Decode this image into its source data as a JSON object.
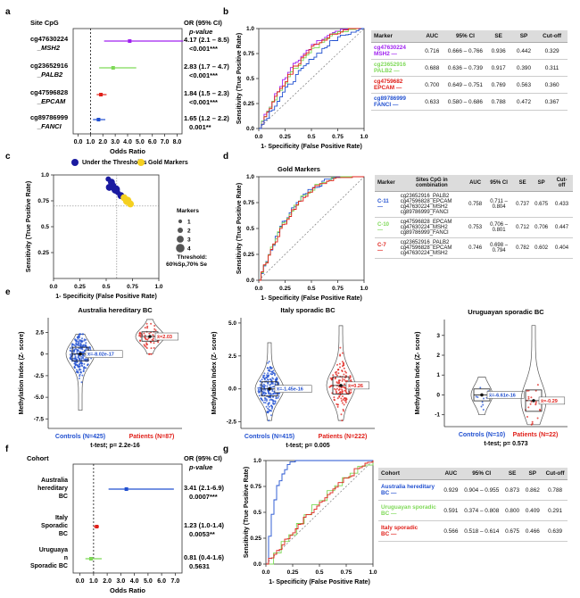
{
  "panel_letters": [
    "a",
    "b",
    "c",
    "d",
    "e",
    "f",
    "g"
  ],
  "colors": {
    "purple": "#a020f0",
    "green": "#7ed957",
    "red": "#e0201a",
    "blue": "#2150d0",
    "navy": "#1a1aa0",
    "gold": "#f5d020",
    "grey": "#888888"
  },
  "panel_a": {
    "col1": "Site CpG",
    "col2": "OR (95% CI)",
    "col3": "p-value",
    "xlabel": "Odds Ratio",
    "rows": [
      {
        "site": "cg47630224",
        "gene": "_MSH2",
        "or": "4.17 (2.1 – 8.5)",
        "p": "<0.001***",
        "est": 4.17,
        "lo": 2.1,
        "hi": 8.5,
        "color": "#a020f0"
      },
      {
        "site": "cg23652916",
        "gene": "_PALB2",
        "or": "2.83 (1.7 – 4.7)",
        "p": "<0.001***",
        "est": 2.83,
        "lo": 1.7,
        "hi": 4.7,
        "color": "#7ed957"
      },
      {
        "site": "cg47596828",
        "gene": "_EPCAM",
        "or": "1.84 (1.5 – 2.3)",
        "p": "<0.001***",
        "est": 1.84,
        "lo": 1.5,
        "hi": 2.3,
        "color": "#e0201a"
      },
      {
        "site": "cg89786999",
        "gene": "_FANCI",
        "or": "1.65 (1.2 – 2.2)",
        "p": "0.001**",
        "est": 1.65,
        "lo": 1.2,
        "hi": 2.2,
        "color": "#2150d0"
      }
    ],
    "ticks": [
      "0.0",
      "1.0",
      "2.0",
      "3.0",
      "4.0",
      "5.0",
      "6.0",
      "7.0",
      "8.0"
    ]
  },
  "panel_b": {
    "ylabel": "Sensitivity (True Positive Rate)",
    "xlabel": "1- Specificity (False Positive Rate)",
    "ticks": [
      "0.0",
      "0.25",
      "0.5",
      "0.75",
      "1.0"
    ],
    "headers": [
      "Marker",
      "AUC",
      "95% CI",
      "SE",
      "SP",
      "Cut-off"
    ],
    "rows": [
      {
        "m1": "cg47630224",
        "m2": "MSH2",
        "auc": "0.716",
        "ci": "0.666 – 0.766",
        "se": "0.936",
        "sp": "0.442",
        "cut": "0.329",
        "color": "#a020f0"
      },
      {
        "m1": "cg23652916",
        "m2": "PALB2",
        "auc": "0.688",
        "ci": "0.636 – 0.739",
        "se": "0.917",
        "sp": "0.390",
        "cut": "0.311",
        "color": "#7ed957"
      },
      {
        "m1": "cg4759682",
        "m2": "EPCAM",
        "auc": "0.700",
        "ci": "0.649 – 0.751",
        "se": "0.769",
        "sp": "0.563",
        "cut": "0.360",
        "color": "#e0201a"
      },
      {
        "m1": "cg89786999",
        "m2": "FANCI",
        "auc": "0.633",
        "ci": "0.580 – 0.686",
        "se": "0.788",
        "sp": "0.472",
        "cut": "0.367",
        "color": "#2150d0"
      }
    ]
  },
  "panel_c": {
    "legend1": "Under the Thresholds",
    "legend2": "Gold Markers",
    "markers_title": "Markers",
    "sizes": [
      "1",
      "2",
      "3",
      "4"
    ],
    "threshold1": "Threshold:",
    "threshold2": "60%Sp,70% Se",
    "ylabel": "Sensitivity (True Positive Rate)",
    "xlabel": "1- Specificity (False Positive Rate)",
    "ticks": [
      "0.0",
      "0.25",
      "0.5",
      "0.75",
      "1.0"
    ],
    "points": [
      {
        "x": 0.52,
        "y": 0.96,
        "s": 2,
        "gold": false
      },
      {
        "x": 0.55,
        "y": 0.93,
        "s": 3,
        "gold": false
      },
      {
        "x": 0.57,
        "y": 0.9,
        "s": 2,
        "gold": false
      },
      {
        "x": 0.53,
        "y": 0.88,
        "s": 3,
        "gold": false
      },
      {
        "x": 0.59,
        "y": 0.86,
        "s": 4,
        "gold": false
      },
      {
        "x": 0.61,
        "y": 0.83,
        "s": 2,
        "gold": false
      },
      {
        "x": 0.64,
        "y": 0.8,
        "s": 3,
        "gold": false
      },
      {
        "x": 0.67,
        "y": 0.78,
        "s": 3,
        "gold": true
      },
      {
        "x": 0.7,
        "y": 0.75,
        "s": 4,
        "gold": true
      },
      {
        "x": 0.73,
        "y": 0.72,
        "s": 3,
        "gold": true
      }
    ]
  },
  "panel_d": {
    "title": "Gold Markers",
    "ylabel": "Sensitivity (True Positive Rate)",
    "xlabel": "1- Specificity (False Positive Rate)",
    "ticks": [
      "0.0",
      "0.25",
      "0.5",
      "0.75",
      "1.0"
    ],
    "headers": [
      "Marker",
      "Sites CpG in combination",
      "AUC",
      "95% CI",
      "SE",
      "SP",
      "Cut-off"
    ],
    "rows": [
      {
        "marker": "C-11",
        "sites": [
          "cg23652916_PALB2",
          "cg47596828_EPCAM",
          "cg47630224_MSH2",
          "cg89786999_FANCI"
        ],
        "auc": "0.758",
        "ci": "0.711 – 0.804",
        "se": "0.737",
        "sp": "0.675",
        "cut": "0.433",
        "color": "#2150d0"
      },
      {
        "marker": "C-10",
        "sites": [
          "cg47596828_EPCAM",
          "cg47630224_MSH2",
          "cg89786999_FANCI"
        ],
        "auc": "0.753",
        "ci": "0.706 – 0.801",
        "se": "0.712",
        "sp": "0.706",
        "cut": "0.447",
        "color": "#7ed957"
      },
      {
        "marker": "C-7",
        "sites": [
          "cg23652916_PALB2",
          "cg47596828_EPCAM",
          "cg47630224_MSH2"
        ],
        "auc": "0.746",
        "ci": "0.698 – 0.794",
        "se": "0.782",
        "sp": "0.602",
        "cut": "0.404",
        "color": "#e0201a"
      }
    ]
  },
  "panel_e": {
    "ylabel": "Methylation Index (Z- score)",
    "plots": [
      {
        "title": "Australia hereditary BC",
        "controls": "Controls (N=425)",
        "patients": "Patients (N=87)",
        "test": "t-test; p= 2.2e-16",
        "mean_c": "x̄=-8.02e-17",
        "mean_p": "x̄=2.03",
        "ticks": [
          "-7.5",
          "-5.0",
          "-2.5",
          "0",
          "2.5"
        ]
      },
      {
        "title": "Italy sporadic BC",
        "controls": "Controls (N=415)",
        "patients": "Patients (N=222)",
        "test": "t-test; p= 0.005",
        "mean_c": "x̄=-1.45e-16",
        "mean_p": "x̄=0.26",
        "ticks": [
          "-2.5",
          "0.0",
          "2.5",
          "5.0"
        ]
      },
      {
        "title": "Uruguayan sporadic BC",
        "controls": "Controls (N=10)",
        "patients": "Patients (N=22)",
        "test": "t-test; p= 0.573",
        "mean_c": "x̄=-6.61e-16",
        "mean_p": "x̄=-0.29",
        "ticks": [
          "-1",
          "0",
          "1",
          "2",
          "3"
        ]
      }
    ]
  },
  "panel_f": {
    "col1": "Cohort",
    "col2": "OR (95% CI)",
    "col3": "p-value",
    "xlabel": "Odds Ratio",
    "ticks": [
      "0.0",
      "1.0",
      "2.0",
      "3.0",
      "4.0",
      "5.0",
      "6.0",
      "7.0"
    ],
    "rows": [
      {
        "l1": "Australia",
        "l2": "hereditary",
        "l3": "BC",
        "or": "3.41 (2.1-6.9)",
        "p": "0.0007***",
        "est": 3.41,
        "lo": 2.1,
        "hi": 6.9,
        "color": "#2150d0"
      },
      {
        "l1": "Italy",
        "l2": "Sporadic",
        "l3": "BC",
        "or": "1.23 (1.0-1.4)",
        "p": "0.0053**",
        "est": 1.23,
        "lo": 1.0,
        "hi": 1.4,
        "color": "#e0201a"
      },
      {
        "l1": "Uruguaya",
        "l2": "n",
        "l3": "Sporadic BC",
        "or": "0.81 (0.4-1.6)",
        "p": "0.5631",
        "est": 0.81,
        "lo": 0.4,
        "hi": 1.6,
        "color": "#7ed957"
      }
    ]
  },
  "panel_g": {
    "ylabel": "Sensitivity (True Positive Rate)",
    "xlabel": "1- Specificity (False Positive Rate)",
    "ticks": [
      "0.0",
      "0.25",
      "0.5",
      "0.75",
      "1.0"
    ],
    "headers": [
      "Cohort",
      "AUC",
      "95% CI",
      "SE",
      "SP",
      "Cut-off"
    ],
    "rows": [
      {
        "c1": "Australia hereditary",
        "c2": "BC",
        "auc": "0.929",
        "ci": "0.904 – 0.955",
        "se": "0.873",
        "sp": "0.862",
        "cut": "0.788",
        "color": "#2150d0"
      },
      {
        "c1": "Uruguayan sporadic",
        "c2": "BC",
        "auc": "0.591",
        "ci": "0.374 – 0.808",
        "se": "0.800",
        "sp": "0.409",
        "cut": "0.291",
        "color": "#7ed957"
      },
      {
        "c1": "Italy sporadic",
        "c2": "BC",
        "auc": "0.566",
        "ci": "0.518 – 0.614",
        "se": "0.675",
        "sp": "0.466",
        "cut": "0.639",
        "color": "#e0201a"
      }
    ]
  }
}
